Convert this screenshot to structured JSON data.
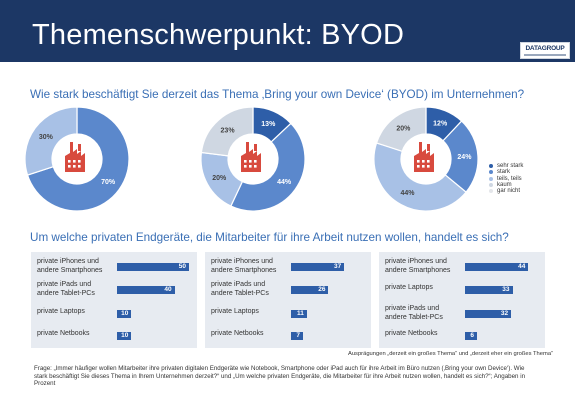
{
  "header": {
    "title": "Themenschwerpunkt: BYOD",
    "logo_text": "DATAGROUP"
  },
  "colors": {
    "header_bg": "#1c3765",
    "question_text": "#3a6fb5",
    "bar": "#2e5ea8",
    "panel_bg": "#e7ebf1",
    "factory_icon": "#d84a3e",
    "sehr_stark": "#2e5ea8",
    "stark": "#5b88cc",
    "teils_teils": "#a8c1e6",
    "kaum": "#cfd7e2",
    "gar_nicht": "#e4e6ea"
  },
  "question1": "Wie stark beschäftigt Sie derzeit das Thema ‚Bring your own Device‘ (BYOD) im Unternehmen?",
  "question2": "Um welche privaten Endgeräte, die Mitarbeiter für ihre Arbeit nutzen wollen, handelt es sich?",
  "legend": [
    {
      "label": "sehr stark",
      "color": "#2e5ea8"
    },
    {
      "label": "stark",
      "color": "#5b88cc"
    },
    {
      "label": "teils, teils",
      "color": "#a8c1e6"
    },
    {
      "label": "kaum",
      "color": "#cfd7e2"
    },
    {
      "label": "gar nicht",
      "color": "#e4e6ea"
    }
  ],
  "icons": {
    "donut_center": "factory-icon"
  },
  "chart_data": [
    {
      "type": "pie",
      "slices": [
        {
          "label": "stark",
          "value": 70,
          "text": "70%",
          "color": "#5b88cc"
        },
        {
          "label": "teils, teils",
          "value": 30,
          "text": "30%",
          "color": "#a8c1e6"
        }
      ]
    },
    {
      "type": "pie",
      "slices": [
        {
          "label": "sehr stark",
          "value": 13,
          "text": "13%",
          "color": "#2e5ea8"
        },
        {
          "label": "stark",
          "value": 44,
          "text": "44%",
          "color": "#5b88cc"
        },
        {
          "label": "teils, teils",
          "value": 20,
          "text": "20%",
          "color": "#a8c1e6"
        },
        {
          "label": "kaum",
          "value": 23,
          "text": "23%",
          "color": "#cfd7e2"
        }
      ]
    },
    {
      "type": "pie",
      "slices": [
        {
          "label": "sehr stark",
          "value": 12,
          "text": "12%",
          "color": "#2e5ea8"
        },
        {
          "label": "stark",
          "value": 24,
          "text": "24%",
          "color": "#5b88cc"
        },
        {
          "label": "teils, teils",
          "value": 44,
          "text": "44%",
          "color": "#a8c1e6"
        },
        {
          "label": "kaum",
          "value": 20,
          "text": "20%",
          "color": "#cfd7e2"
        }
      ]
    },
    {
      "type": "bar",
      "orientation": "horizontal",
      "categories": [
        "private iPhones und andere Smartphones",
        "private iPads und andere Tablet-PCs",
        "private Laptops",
        "private Netbooks"
      ],
      "values": [
        50,
        40,
        10,
        10
      ],
      "xlim": [
        0,
        50
      ]
    },
    {
      "type": "bar",
      "orientation": "horizontal",
      "categories": [
        "private iPhones und andere Smartphones",
        "private iPads und andere Tablet-PCs",
        "private Laptops",
        "private Netbooks"
      ],
      "values": [
        37,
        26,
        11,
        7
      ],
      "xlim": [
        0,
        50
      ]
    },
    {
      "type": "bar",
      "orientation": "horizontal",
      "categories": [
        "private iPhones und andere Smartphones",
        "private Laptops",
        "private iPads und andere Tablet-PCs",
        "private Netbooks"
      ],
      "values": [
        44,
        33,
        32,
        6
      ],
      "xlim": [
        0,
        50
      ]
    }
  ],
  "panels": [
    {
      "rows": [
        {
          "l1": "private iPhones und",
          "l2": "andere Smartphones"
        },
        {
          "l1": "private iPads und",
          "l2": "andere Tablet-PCs"
        },
        {
          "l1": "private Laptops",
          "l2": ""
        },
        {
          "l1": "private Netbooks",
          "l2": ""
        }
      ]
    },
    {
      "rows": [
        {
          "l1": "private iPhones und",
          "l2": "andere Smartphones"
        },
        {
          "l1": "private iPads und",
          "l2": "andere Tablet-PCs"
        },
        {
          "l1": "private Laptops",
          "l2": ""
        },
        {
          "l1": "private Netbooks",
          "l2": ""
        }
      ]
    },
    {
      "rows": [
        {
          "l1": "private iPhones und",
          "l2": "andere Smartphones"
        },
        {
          "l1": "private Laptops",
          "l2": ""
        },
        {
          "l1": "private iPads und",
          "l2": "andere Tablet-PCs"
        },
        {
          "l1": "private Netbooks",
          "l2": ""
        }
      ]
    }
  ],
  "note": "Ausprägungen „derzeit ein großes Thema“ und „derzeit eher ein großes Thema“",
  "footnote": "Frage: „Immer häufiger wollen Mitarbeiter ihre privaten digitalen Endgeräte wie Notebook, Smartphone oder iPad auch für ihre Arbeit im Büro nutzen (‚Bring your own Device‘). Wie stark beschäftigt Sie dieses Thema in Ihrem Unternehmen derzeit?“ und „Um welche privaten Endgeräte, die Mitarbeiter für ihre Arbeit nutzen wollen, handelt es sich?“; Angaben in Prozent"
}
